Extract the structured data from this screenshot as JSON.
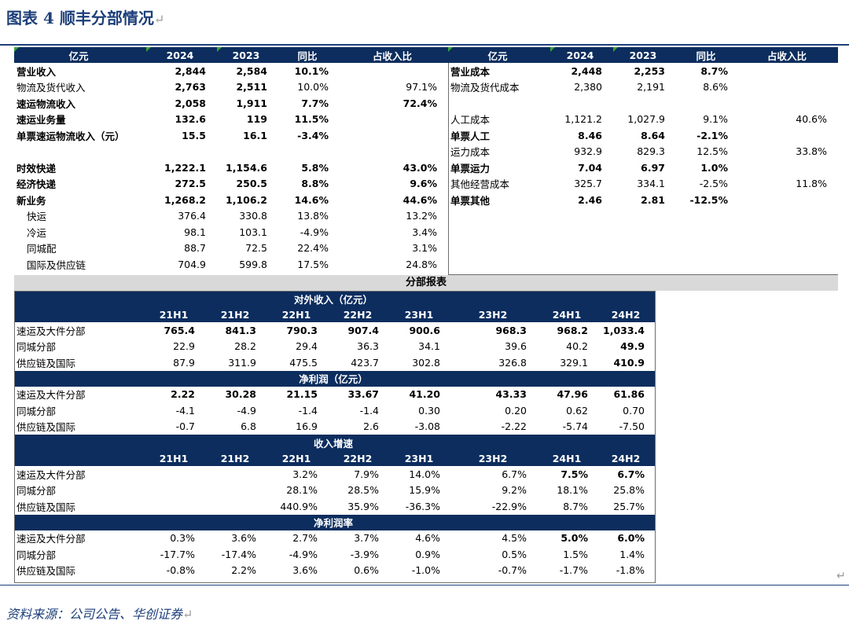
{
  "figure": {
    "title": "图表 4 顺丰分部情况",
    "return_mark": "↵"
  },
  "source": "资料来源：公司公告、华创证券",
  "left": {
    "header": [
      "亿元",
      "2024",
      "2023",
      "同比",
      "占收入比"
    ],
    "rows": [
      {
        "label": "营业收入",
        "v24": "2,844",
        "v23": "2,584",
        "yoy": "10.1%",
        "share": "",
        "bold": true
      },
      {
        "label": "物流及货代收入",
        "v24": "2,763",
        "v23": "2,511",
        "yoy": "10.0%",
        "share": "97.1%",
        "bold": false
      },
      {
        "label": "速运物流收入",
        "v24": "2,058",
        "v23": "1,911",
        "yoy": "7.7%",
        "share": "72.4%",
        "bold": true
      },
      {
        "label": "速运业务量",
        "v24": "132.6",
        "v23": "119",
        "yoy": "11.5%",
        "share": "",
        "bold": true
      },
      {
        "label": "单票速运物流收入（元）",
        "v24": "15.5",
        "v23": "16.1",
        "yoy": "-3.4%",
        "share": "",
        "bold": true
      },
      {
        "label": "",
        "v24": "",
        "v23": "",
        "yoy": "",
        "share": "",
        "bold": false
      },
      {
        "label": "时效快递",
        "v24": "1,222.1",
        "v23": "1,154.6",
        "yoy": "5.8%",
        "share": "43.0%",
        "bold": true
      },
      {
        "label": "经济快递",
        "v24": "272.5",
        "v23": "250.5",
        "yoy": "8.8%",
        "share": "9.6%",
        "bold": true
      },
      {
        "label": "新业务",
        "v24": "1,268.2",
        "v23": "1,106.2",
        "yoy": "14.6%",
        "share": "44.6%",
        "bold": true
      },
      {
        "label": "快运",
        "v24": "376.4",
        "v23": "330.8",
        "yoy": "13.8%",
        "share": "13.2%",
        "bold": false
      },
      {
        "label": "冷运",
        "v24": "98.1",
        "v23": "103.1",
        "yoy": "-4.9%",
        "share": "3.4%",
        "bold": false
      },
      {
        "label": "同城配",
        "v24": "88.7",
        "v23": "72.5",
        "yoy": "22.4%",
        "share": "3.1%",
        "bold": false
      },
      {
        "label": "国际及供应链",
        "v24": "704.9",
        "v23": "599.8",
        "yoy": "17.5%",
        "share": "24.8%",
        "bold": false
      }
    ]
  },
  "right": {
    "header": [
      "亿元",
      "2024",
      "2023",
      "同比",
      "占收入比"
    ],
    "rows": [
      {
        "label": "营业成本",
        "v24": "2,448",
        "v23": "2,253",
        "yoy": "8.7%",
        "share": "",
        "bold": true
      },
      {
        "label": "物流及货代成本",
        "v24": "2,380",
        "v23": "2,191",
        "yoy": "8.6%",
        "share": "",
        "bold": false
      },
      {
        "label": "",
        "v24": "",
        "v23": "",
        "yoy": "",
        "share": "",
        "bold": false
      },
      {
        "label": "人工成本",
        "v24": "1,121.2",
        "v23": "1,027.9",
        "yoy": "9.1%",
        "share": "40.6%",
        "bold": false
      },
      {
        "label": "单票人工",
        "v24": "8.46",
        "v23": "8.64",
        "yoy": "-2.1%",
        "share": "",
        "bold": true
      },
      {
        "label": "运力成本",
        "v24": "932.9",
        "v23": "829.3",
        "yoy": "12.5%",
        "share": "33.8%",
        "bold": false
      },
      {
        "label": "单票运力",
        "v24": "7.04",
        "v23": "6.97",
        "yoy": "1.0%",
        "share": "",
        "bold": true
      },
      {
        "label": "其他经营成本",
        "v24": "325.7",
        "v23": "334.1",
        "yoy": "-2.5%",
        "share": "11.8%",
        "bold": false
      },
      {
        "label": "单票其他",
        "v24": "2.46",
        "v23": "2.81",
        "yoy": "-12.5%",
        "share": "",
        "bold": true
      }
    ]
  },
  "segment": {
    "band": "分部报表",
    "periods": [
      "21H1",
      "21H2",
      "22H1",
      "22H2",
      "23H1",
      "23H2",
      "24H1",
      "24H2"
    ],
    "sections": [
      {
        "title": "对外收入（亿元）",
        "show_periods": true,
        "rows": [
          {
            "label": "速运及大件分部",
            "values": [
              "765.4",
              "841.3",
              "790.3",
              "907.4",
              "900.6",
              "968.3",
              "968.2",
              "1,033.4"
            ],
            "bold": [
              true,
              true,
              true,
              true,
              true,
              true,
              true,
              true
            ]
          },
          {
            "label": "同城分部",
            "values": [
              "22.9",
              "28.2",
              "29.4",
              "36.3",
              "34.1",
              "39.6",
              "40.2",
              "49.9"
            ],
            "bold": [
              false,
              false,
              false,
              false,
              false,
              false,
              false,
              true
            ]
          },
          {
            "label": "供应链及国际",
            "values": [
              "87.9",
              "311.9",
              "475.5",
              "423.7",
              "302.8",
              "326.8",
              "329.1",
              "410.9"
            ],
            "bold": [
              false,
              false,
              false,
              false,
              false,
              false,
              false,
              true
            ]
          }
        ]
      },
      {
        "title": "净利润（亿元）",
        "show_periods": false,
        "rows": [
          {
            "label": "速运及大件分部",
            "values": [
              "2.22",
              "30.28",
              "21.15",
              "33.67",
              "41.20",
              "43.33",
              "47.96",
              "61.86"
            ],
            "bold": [
              true,
              true,
              true,
              true,
              true,
              true,
              true,
              true
            ]
          },
          {
            "label": "同城分部",
            "values": [
              "-4.1",
              "-4.9",
              "-1.4",
              "-1.4",
              "0.30",
              "0.20",
              "0.62",
              "0.70"
            ],
            "bold": [
              false,
              false,
              false,
              false,
              false,
              false,
              false,
              false
            ]
          },
          {
            "label": "供应链及国际",
            "values": [
              "-0.7",
              "6.8",
              "16.9",
              "2.6",
              "-3.08",
              "-2.22",
              "-5.74",
              "-7.50"
            ],
            "bold": [
              false,
              false,
              false,
              false,
              false,
              false,
              false,
              false
            ]
          }
        ]
      },
      {
        "title": "收入增速",
        "show_periods": true,
        "rows": [
          {
            "label": "速运及大件分部",
            "values": [
              "",
              "",
              "3.2%",
              "7.9%",
              "14.0%",
              "6.7%",
              "7.5%",
              "6.7%"
            ],
            "bold": [
              false,
              false,
              false,
              false,
              false,
              false,
              true,
              true
            ]
          },
          {
            "label": "同城分部",
            "values": [
              "",
              "",
              "28.1%",
              "28.5%",
              "15.9%",
              "9.2%",
              "18.1%",
              "25.8%"
            ],
            "bold": [
              false,
              false,
              false,
              false,
              false,
              false,
              false,
              false
            ]
          },
          {
            "label": "供应链及国际",
            "values": [
              "",
              "",
              "440.9%",
              "35.9%",
              "-36.3%",
              "-22.9%",
              "8.7%",
              "25.7%"
            ],
            "bold": [
              false,
              false,
              false,
              false,
              false,
              false,
              false,
              false
            ]
          }
        ]
      },
      {
        "title": "净利润率",
        "show_periods": false,
        "rows": [
          {
            "label": "速运及大件分部",
            "values": [
              "0.3%",
              "3.6%",
              "2.7%",
              "3.7%",
              "4.6%",
              "4.5%",
              "5.0%",
              "6.0%"
            ],
            "bold": [
              false,
              false,
              false,
              false,
              false,
              false,
              true,
              true
            ]
          },
          {
            "label": "同城分部",
            "values": [
              "-17.7%",
              "-17.4%",
              "-4.9%",
              "-3.9%",
              "0.9%",
              "0.5%",
              "1.5%",
              "1.4%"
            ],
            "bold": [
              false,
              false,
              false,
              false,
              false,
              false,
              false,
              false
            ]
          },
          {
            "label": "供应链及国际",
            "values": [
              "-0.8%",
              "2.2%",
              "3.6%",
              "0.6%",
              "-1.0%",
              "-0.7%",
              "-1.7%",
              "-1.8%"
            ],
            "bold": [
              false,
              false,
              false,
              false,
              false,
              false,
              false,
              false
            ]
          }
        ]
      }
    ]
  }
}
